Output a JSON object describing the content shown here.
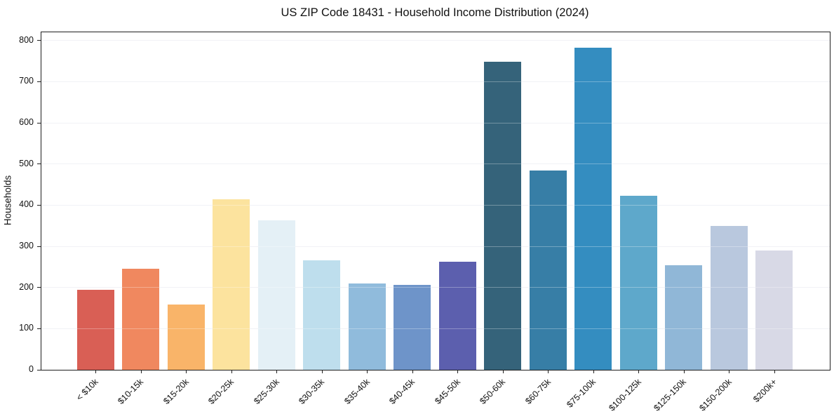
{
  "title": "US ZIP Code 18431 - Household Income Distribution (2024)",
  "chart_data": {
    "type": "bar",
    "title": "US ZIP Code 18431 - Household Income Distribution (2024)",
    "xlabel": "",
    "ylabel": "Households",
    "categories": [
      "< $10k",
      "$10-15k",
      "$15-20k",
      "$20-25k",
      "$25-30k",
      "$30-35k",
      "$35-40k",
      "$40-45k",
      "$45-50k",
      "$50-60k",
      "$60-75k",
      "$75-100k",
      "$100-125k",
      "$125-150k",
      "$150-200k",
      "$200k+"
    ],
    "values": [
      194,
      245,
      159,
      415,
      363,
      266,
      209,
      206,
      262,
      748,
      484,
      782,
      422,
      254,
      349,
      289
    ],
    "bar_colors": [
      "#d95f55",
      "#f0885f",
      "#f9b469",
      "#fce39e",
      "#e4f0f6",
      "#bedeed",
      "#90bbdc",
      "#6e94c9",
      "#5c5fae",
      "#35637a",
      "#377ea6",
      "#348dc0",
      "#5ea8cb",
      "#90b7d7",
      "#b9c8de",
      "#d8d9e6"
    ],
    "ylim": [
      0,
      820
    ],
    "yticks": [
      0,
      100,
      200,
      300,
      400,
      500,
      600,
      700,
      800
    ],
    "grid": "horizontal-light-gray",
    "gridline_color": "#ebecf2",
    "legend": "none",
    "spine_color": "#1f1f1f",
    "background_color": "#ffffff",
    "x_tick_label_rotation_deg": 45
  }
}
